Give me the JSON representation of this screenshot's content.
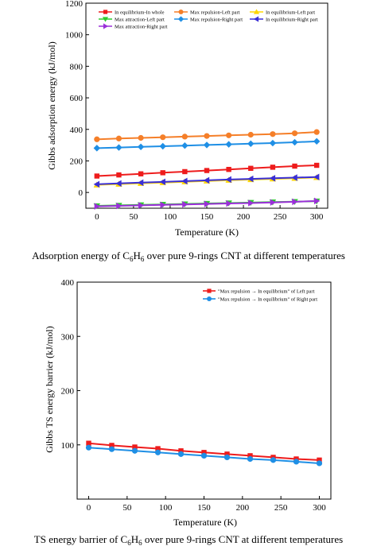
{
  "figure": {
    "caption1": {
      "pre": "Adsorption energy of C",
      "sub1": "6",
      "mid": "H",
      "sub2": "6",
      "post": " over pure 9-rings CNT at different temperatures"
    },
    "caption2": {
      "pre": "TS energy barrier of C",
      "sub1": "6",
      "mid": "H",
      "sub2": "6",
      "post": " over pure 9-rings CNT at different temperatures"
    }
  },
  "chart_data": [
    {
      "type": "line",
      "title": "",
      "xlabel": "Temperature (K)",
      "ylabel": "Gibbs adsorption energy (kJ/mol)",
      "xlim": [
        -15,
        315
      ],
      "ylim": [
        -100,
        1200
      ],
      "xticks": [
        0,
        50,
        100,
        150,
        200,
        250,
        300
      ],
      "yticks": [
        0,
        200,
        400,
        600,
        800,
        1000,
        1200
      ],
      "legend_position": "top",
      "grid": false,
      "x": [
        0,
        30,
        60,
        90,
        120,
        150,
        180,
        210,
        240,
        270,
        300
      ],
      "series": [
        {
          "name": "In equilibrium-In whole",
          "color": "#ee1c1c",
          "marker": "square",
          "values": [
            104,
            111,
            118,
            125,
            132,
            139,
            146,
            153,
            160,
            167,
            172
          ]
        },
        {
          "name": "Max repulsion-Left part",
          "color": "#f57f29",
          "marker": "circle",
          "values": [
            337,
            342,
            346,
            350,
            354,
            358,
            362,
            366,
            370,
            375,
            383
          ]
        },
        {
          "name": "In equilibrium-Left part",
          "color": "#ffd700",
          "marker": "triangle-up",
          "values": [
            48,
            53,
            58,
            63,
            68,
            73,
            78,
            82,
            86,
            90,
            95
          ]
        },
        {
          "name": "Max attraction-Left part",
          "color": "#2ecc2e",
          "marker": "triangle-down",
          "values": [
            -85,
            -82,
            -79,
            -76,
            -73,
            -70,
            -67,
            -64,
            -61,
            -58,
            -55
          ]
        },
        {
          "name": "Max repulsion-Right part",
          "color": "#1f8fe5",
          "marker": "diamond",
          "values": [
            281,
            285,
            289,
            293,
            297,
            301,
            305,
            309,
            313,
            318,
            324
          ]
        },
        {
          "name": "In equilibrium-Right part",
          "color": "#3a2fd6",
          "marker": "triangle-left",
          "values": [
            52,
            57,
            62,
            67,
            72,
            77,
            82,
            86,
            90,
            94,
            98
          ]
        },
        {
          "name": "Max attraction-Right part",
          "color": "#9b30d9",
          "marker": "triangle-right",
          "values": [
            -88,
            -85,
            -82,
            -79,
            -76,
            -73,
            -70,
            -67,
            -63,
            -59,
            -54
          ]
        }
      ]
    },
    {
      "type": "line",
      "title": "",
      "xlabel": "Temperature (K)",
      "ylabel": "Gibbs TS energy barrier (kJ/mol)",
      "xlim": [
        -15,
        315
      ],
      "ylim": [
        0,
        400
      ],
      "xticks": [
        0,
        50,
        100,
        150,
        200,
        250,
        300
      ],
      "yticks": [
        100,
        200,
        300,
        400
      ],
      "legend_position": "top-right",
      "grid": false,
      "x": [
        0,
        30,
        60,
        90,
        120,
        150,
        180,
        210,
        240,
        270,
        300
      ],
      "series": [
        {
          "name": "\"Max repulsion → In equilibrium\" of Left part",
          "color": "#ee1c1c",
          "marker": "square",
          "values": [
            103,
            99,
            96,
            93,
            89,
            86,
            83,
            80,
            77,
            74,
            72
          ]
        },
        {
          "name": "\"Max repulsion → In equilibrium\" of Right part",
          "color": "#1f8fe5",
          "marker": "circle",
          "values": [
            95,
            92,
            89,
            86,
            83,
            80,
            77,
            74,
            72,
            69,
            66
          ]
        }
      ]
    }
  ]
}
